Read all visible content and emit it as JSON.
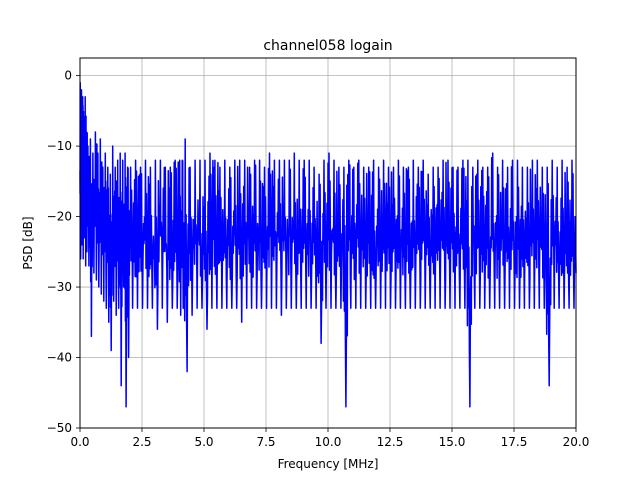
{
  "chart_data": {
    "type": "line",
    "title": "channel058 logain",
    "xlabel": "Frequency [MHz]",
    "ylabel": "PSD [dB]",
    "xlim": [
      0,
      20
    ],
    "ylim": [
      -50,
      2.5
    ],
    "xticks": [
      0,
      2.5,
      5,
      7.5,
      10,
      12.5,
      15,
      17.5,
      20
    ],
    "xtick_labels": [
      "0.0",
      "2.5",
      "5.0",
      "7.5",
      "10.0",
      "12.5",
      "15.0",
      "17.5",
      "20.0"
    ],
    "yticks": [
      -50,
      -40,
      -30,
      -20,
      -10,
      0
    ],
    "ytick_labels": [
      "−50",
      "−40",
      "−30",
      "−20",
      "−10",
      "0"
    ],
    "grid": true,
    "series": [
      {
        "color": "#0000ff",
        "x": [
          0.0,
          0.05,
          0.1,
          0.15,
          0.2,
          0.25,
          0.3,
          0.4,
          0.5,
          0.6,
          0.7,
          0.8,
          0.9,
          1.0,
          1.1,
          1.2,
          1.3,
          1.4,
          1.5,
          1.6,
          1.7,
          1.8,
          1.9,
          2.0,
          2.2,
          2.4,
          2.6,
          2.8,
          3.0,
          3.2,
          3.4,
          3.6,
          3.8,
          4.0,
          4.1,
          4.2,
          4.4,
          4.6,
          4.8,
          5.0,
          5.2,
          5.4,
          5.6,
          5.8,
          6.0,
          6.2,
          6.4,
          6.6,
          6.8,
          7.0,
          7.2,
          7.4,
          7.6,
          7.8,
          8.0,
          8.2,
          8.4,
          8.6,
          8.8,
          9.0,
          9.2,
          9.4,
          9.6,
          9.8,
          10.0,
          10.2,
          10.4,
          10.6,
          10.8,
          11.0,
          11.2,
          11.4,
          11.6,
          11.8,
          12.0,
          12.2,
          12.4,
          12.6,
          12.8,
          13.0,
          13.2,
          13.4,
          13.6,
          13.8,
          14.0,
          14.2,
          14.4,
          14.6,
          14.8,
          15.0,
          15.2,
          15.4,
          15.6,
          15.8,
          16.0,
          16.2,
          16.4,
          16.6,
          16.8,
          17.0,
          17.2,
          17.4,
          17.6,
          17.8,
          18.0,
          18.2,
          18.4,
          18.6,
          18.8,
          19.0,
          19.2,
          19.4,
          19.6,
          19.8,
          20.0
        ],
        "y_max": [
          -1,
          -2,
          -3,
          -6,
          -3,
          -8,
          -10,
          -9,
          -11,
          -8,
          -11,
          -9,
          -13,
          -11,
          -13,
          -14,
          -10,
          -13,
          -12,
          -11,
          -12,
          -11,
          -13,
          -13,
          -12,
          -13,
          -12,
          -13,
          -12,
          -12,
          -13,
          -13,
          -12,
          -12,
          -12,
          -9,
          -13,
          -12,
          -12,
          -12,
          -11,
          -12,
          -13,
          -12,
          -13,
          -12,
          -12,
          -12,
          -13,
          -12,
          -12,
          -13,
          -11,
          -12,
          -12,
          -12,
          -12,
          -11,
          -12,
          -12,
          -12,
          -13,
          -14,
          -12,
          -11,
          -12,
          -13,
          -13,
          -12,
          -13,
          -12,
          -13,
          -13,
          -12,
          -13,
          -12,
          -13,
          -13,
          -12,
          -13,
          -13,
          -12,
          -13,
          -12,
          -14,
          -13,
          -13,
          -12,
          -12,
          -13,
          -13,
          -12,
          -12,
          -13,
          -12,
          -13,
          -13,
          -11,
          -13,
          -12,
          -13,
          -12,
          -12,
          -13,
          -13,
          -12,
          -12,
          -13,
          -13,
          -12,
          -13,
          -12,
          -13,
          -12,
          -15
        ],
        "y_min": [
          -26,
          -24,
          -26,
          -23,
          -27,
          -25,
          -27,
          -37,
          -28,
          -29,
          -30,
          -31,
          -32,
          -33,
          -35,
          -39,
          -32,
          -34,
          -33,
          -44,
          -30,
          -47,
          -40,
          -33,
          -33,
          -33,
          -33,
          -33,
          -36,
          -33,
          -35,
          -33,
          -33,
          -34,
          -33,
          -42,
          -34,
          -33,
          -33,
          -36,
          -33,
          -33,
          -33,
          -33,
          -33,
          -33,
          -35,
          -33,
          -33,
          -33,
          -33,
          -33,
          -33,
          -33,
          -34,
          -33,
          -33,
          -33,
          -33,
          -33,
          -33,
          -33,
          -38,
          -33,
          -33,
          -33,
          -33,
          -47,
          -33,
          -33,
          -33,
          -33,
          -33,
          -33,
          -33,
          -33,
          -33,
          -33,
          -33,
          -33,
          -33,
          -33,
          -33,
          -33,
          -33,
          -33,
          -33,
          -33,
          -33,
          -33,
          -33,
          -33,
          -47,
          -33,
          -33,
          -33,
          -33,
          -33,
          -33,
          -33,
          -33,
          -33,
          -33,
          -33,
          -33,
          -33,
          -33,
          -33,
          -44,
          -33,
          -33,
          -33,
          -33,
          -33,
          -41
        ]
      }
    ]
  }
}
